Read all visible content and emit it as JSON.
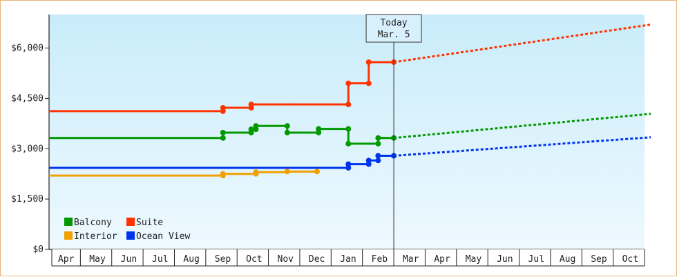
{
  "chart_data": {
    "type": "line",
    "title": "",
    "xlabel": "",
    "ylabel": "",
    "x_tick_labels": [
      "Apr",
      "May",
      "Jun",
      "Jul",
      "Aug",
      "Sep",
      "Oct",
      "Nov",
      "Dec",
      "Jan",
      "Feb",
      "Mar",
      "Apr",
      "May",
      "Jun",
      "Jul",
      "Aug",
      "Sep",
      "Oct"
    ],
    "y_ticks": [
      0,
      1500,
      3000,
      4500,
      6000
    ],
    "y_tick_labels": [
      "$0",
      "$1,500",
      "$3,000",
      "$4,500",
      "$6,000"
    ],
    "ylim": [
      0,
      7000
    ],
    "xlim": [
      0,
      19
    ],
    "grid": false,
    "legend_position": "bottom-left",
    "today_marker": {
      "x": 11.0,
      "line1": "Today",
      "line2": "Mar. 5"
    },
    "series": [
      {
        "name": "Balcony",
        "color": "#009900",
        "actual": [
          [
            0,
            3320
          ],
          [
            5.55,
            3320
          ],
          [
            5.55,
            3480
          ],
          [
            6.45,
            3480
          ],
          [
            6.45,
            3580
          ],
          [
            6.6,
            3580
          ],
          [
            6.6,
            3680
          ],
          [
            7.6,
            3680
          ],
          [
            7.6,
            3480
          ],
          [
            8.6,
            3480
          ],
          [
            8.6,
            3590
          ],
          [
            9.55,
            3590
          ],
          [
            9.55,
            3150
          ],
          [
            10.5,
            3150
          ],
          [
            10.5,
            3320
          ],
          [
            11.0,
            3320
          ]
        ],
        "markers": [
          [
            5.55,
            3320
          ],
          [
            5.55,
            3480
          ],
          [
            6.45,
            3480
          ],
          [
            6.45,
            3580
          ],
          [
            6.6,
            3580
          ],
          [
            6.6,
            3680
          ],
          [
            7.6,
            3680
          ],
          [
            7.6,
            3480
          ],
          [
            8.6,
            3480
          ],
          [
            8.6,
            3590
          ],
          [
            9.55,
            3590
          ],
          [
            9.55,
            3150
          ],
          [
            10.5,
            3150
          ],
          [
            10.5,
            3320
          ],
          [
            11.0,
            3320
          ]
        ],
        "forecast": [
          [
            11.0,
            3320
          ],
          [
            19.2,
            4040
          ]
        ]
      },
      {
        "name": "Interior",
        "color": "#f0a000",
        "actual": [
          [
            0,
            2200
          ],
          [
            5.55,
            2200
          ],
          [
            5.55,
            2250
          ],
          [
            6.6,
            2250
          ],
          [
            6.6,
            2300
          ],
          [
            7.6,
            2300
          ],
          [
            7.6,
            2320
          ],
          [
            8.55,
            2320
          ]
        ],
        "markers": [
          [
            5.55,
            2200
          ],
          [
            5.55,
            2250
          ],
          [
            6.6,
            2250
          ],
          [
            6.6,
            2300
          ],
          [
            7.6,
            2320
          ],
          [
            8.55,
            2320
          ]
        ],
        "forecast": []
      },
      {
        "name": "Suite",
        "color": "#ff3300",
        "actual": [
          [
            0,
            4120
          ],
          [
            5.55,
            4120
          ],
          [
            5.55,
            4220
          ],
          [
            6.45,
            4220
          ],
          [
            6.45,
            4320
          ],
          [
            9.55,
            4320
          ],
          [
            9.55,
            4950
          ],
          [
            10.2,
            4950
          ],
          [
            10.2,
            5580
          ],
          [
            11.0,
            5580
          ]
        ],
        "markers": [
          [
            5.55,
            4120
          ],
          [
            5.55,
            4220
          ],
          [
            6.45,
            4220
          ],
          [
            6.45,
            4320
          ],
          [
            9.55,
            4320
          ],
          [
            9.55,
            4950
          ],
          [
            10.2,
            4950
          ],
          [
            10.2,
            5580
          ],
          [
            11.0,
            5580
          ]
        ],
        "forecast": [
          [
            11.0,
            5580
          ],
          [
            19.2,
            6700
          ]
        ]
      },
      {
        "name": "Ocean View",
        "color": "#0033ee",
        "actual": [
          [
            0,
            2430
          ],
          [
            9.55,
            2430
          ],
          [
            9.55,
            2540
          ],
          [
            10.2,
            2540
          ],
          [
            10.2,
            2650
          ],
          [
            10.5,
            2650
          ],
          [
            10.5,
            2790
          ],
          [
            11.0,
            2790
          ]
        ],
        "markers": [
          [
            9.55,
            2430
          ],
          [
            9.55,
            2540
          ],
          [
            10.2,
            2540
          ],
          [
            10.2,
            2650
          ],
          [
            10.5,
            2650
          ],
          [
            10.5,
            2790
          ],
          [
            11.0,
            2790
          ]
        ],
        "forecast": [
          [
            11.0,
            2790
          ],
          [
            19.2,
            3340
          ]
        ]
      }
    ],
    "legend": [
      {
        "label": "Balcony",
        "color": "#009900"
      },
      {
        "label": "Suite",
        "color": "#ff3300"
      },
      {
        "label": "Interior",
        "color": "#f0a000"
      },
      {
        "label": "Ocean View",
        "color": "#0033ee"
      }
    ]
  }
}
